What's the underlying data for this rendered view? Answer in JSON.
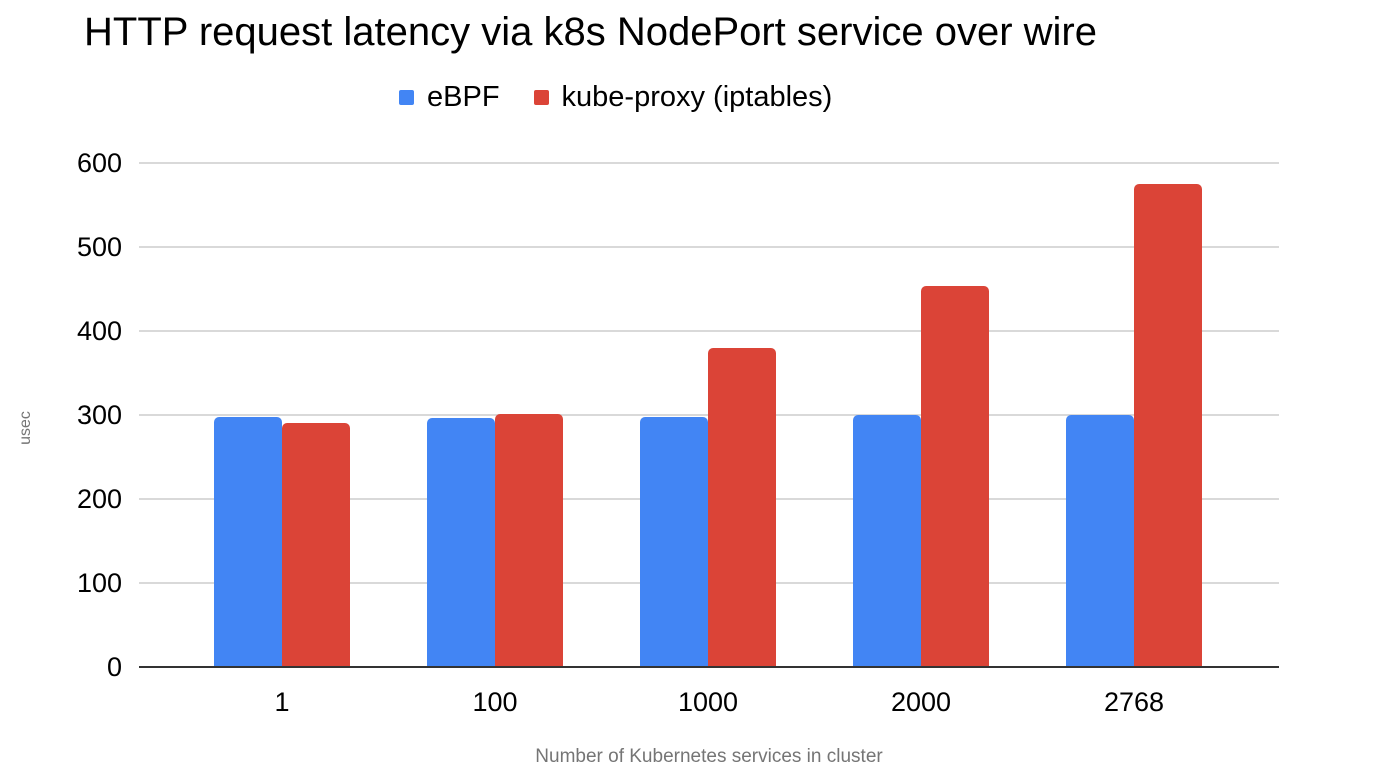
{
  "chart": {
    "title": "HTTP request latency via k8s NodePort service over wire",
    "y_axis_title": "usec",
    "x_axis_title": "Number of Kubernetes services in cluster"
  },
  "chart_data": {
    "type": "bar",
    "title": "HTTP request latency via k8s NodePort service over wire",
    "categories": [
      "1",
      "100",
      "1000",
      "2000",
      "2768"
    ],
    "series": [
      {
        "name": "eBPF",
        "color": "#4285F4",
        "values": [
          298,
          296,
          298,
          300,
          300
        ]
      },
      {
        "name": "kube-proxy (iptables)",
        "color": "#DB4437",
        "values": [
          290,
          301,
          380,
          454,
          575
        ]
      }
    ],
    "xlabel": "Number of Kubernetes services in cluster",
    "ylabel": "usec",
    "ylim": [
      0,
      600
    ],
    "yticks": [
      0,
      100,
      200,
      300,
      400,
      500,
      600
    ],
    "grid": true,
    "gridline_color": "#d9d9d9",
    "axis_line_color": "#333333",
    "legend_position": "top"
  }
}
